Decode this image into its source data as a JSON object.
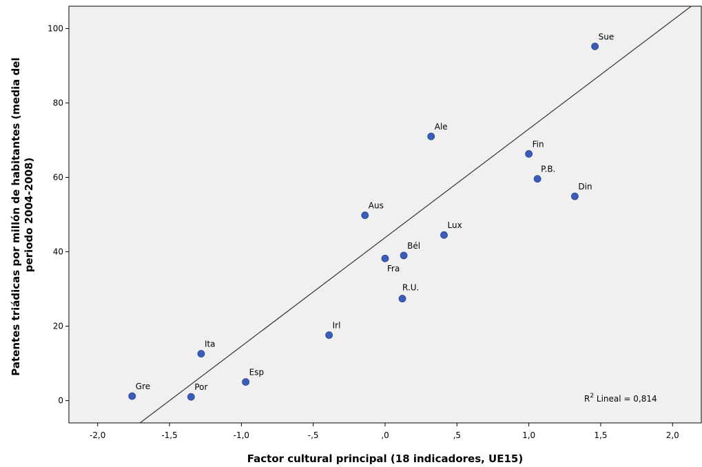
{
  "chart_data": {
    "type": "scatter",
    "xlabel": "Factor cultural principal (18 indicadores, UE15)",
    "ylabel_lines": [
      "Patentes triádicas por millón de habitantes (media del",
      "periodo 2004-2008)"
    ],
    "xlim": [
      -2.2,
      2.2
    ],
    "ylim": [
      -6,
      106
    ],
    "x_ticks": [
      {
        "value": -2.0,
        "label": "-2,0"
      },
      {
        "value": -1.5,
        "label": "-1,5"
      },
      {
        "value": -1.0,
        "label": "-1,0"
      },
      {
        "value": -0.5,
        "label": "-,5"
      },
      {
        "value": 0.0,
        "label": ",0"
      },
      {
        "value": 0.5,
        "label": ",5"
      },
      {
        "value": 1.0,
        "label": "1,0"
      },
      {
        "value": 1.5,
        "label": "1,5"
      },
      {
        "value": 2.0,
        "label": "2,0"
      }
    ],
    "y_ticks": [
      {
        "value": 0,
        "label": "0"
      },
      {
        "value": 20,
        "label": "20"
      },
      {
        "value": 40,
        "label": "40"
      },
      {
        "value": 60,
        "label": "60"
      },
      {
        "value": 80,
        "label": "80"
      },
      {
        "value": 100,
        "label": "100"
      }
    ],
    "grid": false,
    "point_color": "#3b5cb8",
    "background_color": "#f0f0f0",
    "points": [
      {
        "label": "Gre",
        "x": -1.76,
        "y": 1.2
      },
      {
        "label": "Por",
        "x": -1.35,
        "y": 1.0
      },
      {
        "label": "Ita",
        "x": -1.28,
        "y": 12.6
      },
      {
        "label": "Esp",
        "x": -0.97,
        "y": 5.0
      },
      {
        "label": "Irl",
        "x": -0.39,
        "y": 17.6
      },
      {
        "label": "Aus",
        "x": -0.14,
        "y": 49.8
      },
      {
        "label": "Fra",
        "x": 0.0,
        "y": 38.2
      },
      {
        "label": "Bél",
        "x": 0.13,
        "y": 39.0
      },
      {
        "label": "R.U.",
        "x": 0.12,
        "y": 27.4
      },
      {
        "label": "Ale",
        "x": 0.32,
        "y": 71.0
      },
      {
        "label": "Lux",
        "x": 0.41,
        "y": 44.5
      },
      {
        "label": "Fin",
        "x": 1.0,
        "y": 66.3
      },
      {
        "label": "P.B.",
        "x": 1.06,
        "y": 59.6
      },
      {
        "label": "Din",
        "x": 1.32,
        "y": 54.9
      },
      {
        "label": "Sue",
        "x": 1.46,
        "y": 95.2
      }
    ],
    "fit_line": {
      "intercept": 43.8,
      "slope": 29.2,
      "line_color": "#333333"
    },
    "annotation": {
      "r2_prefix": "R",
      "r2_sup": "2",
      "r2_text": " Lineal = 0,814"
    }
  }
}
